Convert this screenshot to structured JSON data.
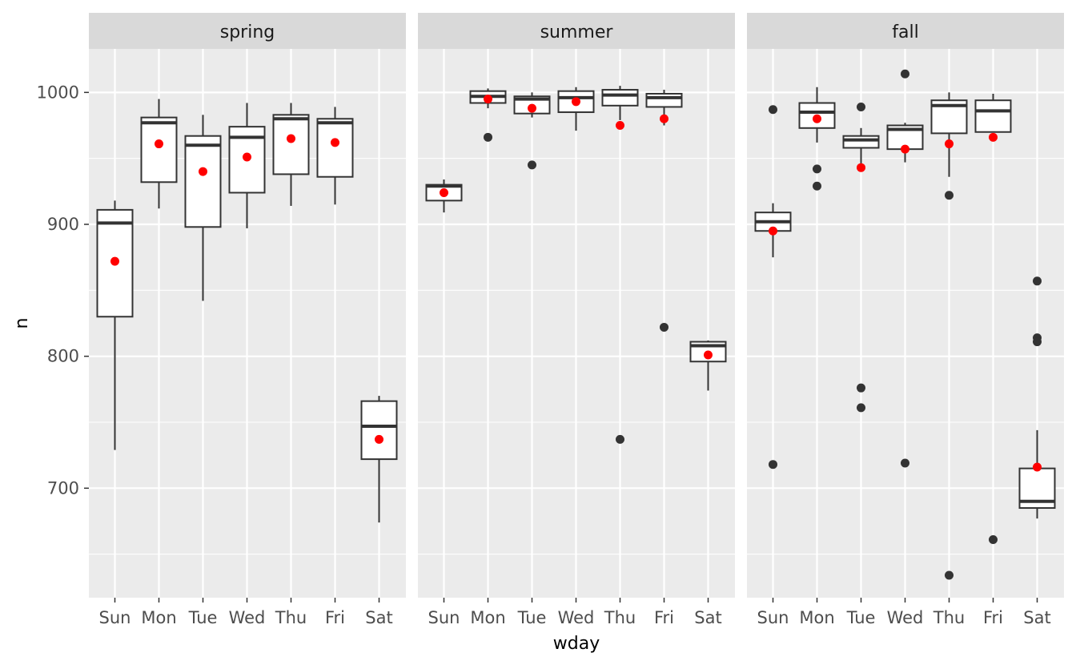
{
  "chart_data": {
    "type": "boxplot",
    "facet_variable": "season",
    "facets": [
      "spring",
      "summer",
      "fall"
    ],
    "categories": [
      "Sun",
      "Mon",
      "Tue",
      "Wed",
      "Thu",
      "Fri",
      "Sat"
    ],
    "xlabel": "wday",
    "ylabel": "n",
    "ylim": [
      617,
      1033
    ],
    "yticks": [
      700,
      800,
      900,
      1000
    ],
    "grid": true,
    "colors": {
      "panel_background": "#ebebeb",
      "grid": "#ffffff",
      "strip_background": "#d9d9d9",
      "box_fill": "#ffffff",
      "box_line": "#333333",
      "outlier": "#333333",
      "mean_point": "#ff0000"
    },
    "panels": [
      {
        "facet": "spring",
        "boxes": [
          {
            "category": "Sun",
            "whisker_low": 729,
            "q1": 830,
            "median": 901,
            "q3": 911,
            "whisker_high": 918,
            "mean": 872,
            "outliers": []
          },
          {
            "category": "Mon",
            "whisker_low": 912,
            "q1": 932,
            "median": 977,
            "q3": 981,
            "whisker_high": 995,
            "mean": 961,
            "outliers": []
          },
          {
            "category": "Tue",
            "whisker_low": 842,
            "q1": 898,
            "median": 960,
            "q3": 967,
            "whisker_high": 983,
            "mean": 940,
            "outliers": []
          },
          {
            "category": "Wed",
            "whisker_low": 897,
            "q1": 924,
            "median": 966,
            "q3": 974,
            "whisker_high": 992,
            "mean": 951,
            "outliers": []
          },
          {
            "category": "Thu",
            "whisker_low": 914,
            "q1": 938,
            "median": 980,
            "q3": 983,
            "whisker_high": 992,
            "mean": 965,
            "outliers": []
          },
          {
            "category": "Fri",
            "whisker_low": 915,
            "q1": 936,
            "median": 977,
            "q3": 980,
            "whisker_high": 989,
            "mean": 962,
            "outliers": []
          },
          {
            "category": "Sat",
            "whisker_low": 674,
            "q1": 722,
            "median": 747,
            "q3": 766,
            "whisker_high": 770,
            "mean": 737,
            "outliers": []
          }
        ]
      },
      {
        "facet": "summer",
        "boxes": [
          {
            "category": "Sun",
            "whisker_low": 909,
            "q1": 918,
            "median": 929,
            "q3": 930,
            "whisker_high": 934,
            "mean": 924,
            "outliers": []
          },
          {
            "category": "Mon",
            "whisker_low": 988,
            "q1": 992,
            "median": 997,
            "q3": 1001,
            "whisker_high": 1003,
            "mean": 995,
            "outliers": [
              966
            ]
          },
          {
            "category": "Tue",
            "whisker_low": 981,
            "q1": 984,
            "median": 995,
            "q3": 997,
            "whisker_high": 1000,
            "mean": 988,
            "outliers": [
              945
            ]
          },
          {
            "category": "Wed",
            "whisker_low": 971,
            "q1": 985,
            "median": 996,
            "q3": 1001,
            "whisker_high": 1004,
            "mean": 993,
            "outliers": []
          },
          {
            "category": "Thu",
            "whisker_low": 979,
            "q1": 990,
            "median": 998,
            "q3": 1002,
            "whisker_high": 1005,
            "mean": 975,
            "outliers": [
              737
            ]
          },
          {
            "category": "Fri",
            "whisker_low": 975,
            "q1": 989,
            "median": 996,
            "q3": 999,
            "whisker_high": 1002,
            "mean": 980,
            "outliers": [
              822
            ]
          },
          {
            "category": "Sat",
            "whisker_low": 774,
            "q1": 796,
            "median": 808,
            "q3": 811,
            "whisker_high": 812,
            "mean": 801,
            "outliers": []
          }
        ]
      },
      {
        "facet": "fall",
        "boxes": [
          {
            "category": "Sun",
            "whisker_low": 875,
            "q1": 895,
            "median": 902,
            "q3": 909,
            "whisker_high": 916,
            "mean": 895,
            "outliers": [
              987,
              718
            ]
          },
          {
            "category": "Mon",
            "whisker_low": 962,
            "q1": 973,
            "median": 985,
            "q3": 992,
            "whisker_high": 1004,
            "mean": 980,
            "outliers": [
              942,
              929
            ]
          },
          {
            "category": "Tue",
            "whisker_low": 943,
            "q1": 958,
            "median": 964,
            "q3": 967,
            "whisker_high": 973,
            "mean": 943,
            "outliers": [
              989,
              776,
              761
            ]
          },
          {
            "category": "Wed",
            "whisker_low": 947,
            "q1": 957,
            "median": 972,
            "q3": 975,
            "whisker_high": 977,
            "mean": 957,
            "outliers": [
              1014,
              719
            ]
          },
          {
            "category": "Thu",
            "whisker_low": 936,
            "q1": 969,
            "median": 990,
            "q3": 994,
            "whisker_high": 1000,
            "mean": 961,
            "outliers": [
              922,
              634
            ]
          },
          {
            "category": "Fri",
            "whisker_low": 970,
            "q1": 970,
            "median": 986,
            "q3": 994,
            "whisker_high": 999,
            "mean": 966,
            "outliers": [
              661
            ]
          },
          {
            "category": "Sat",
            "whisker_low": 677,
            "q1": 685,
            "median": 690,
            "q3": 715,
            "whisker_high": 744,
            "mean": 716,
            "outliers": [
              857,
              814,
              811
            ]
          }
        ]
      }
    ]
  }
}
